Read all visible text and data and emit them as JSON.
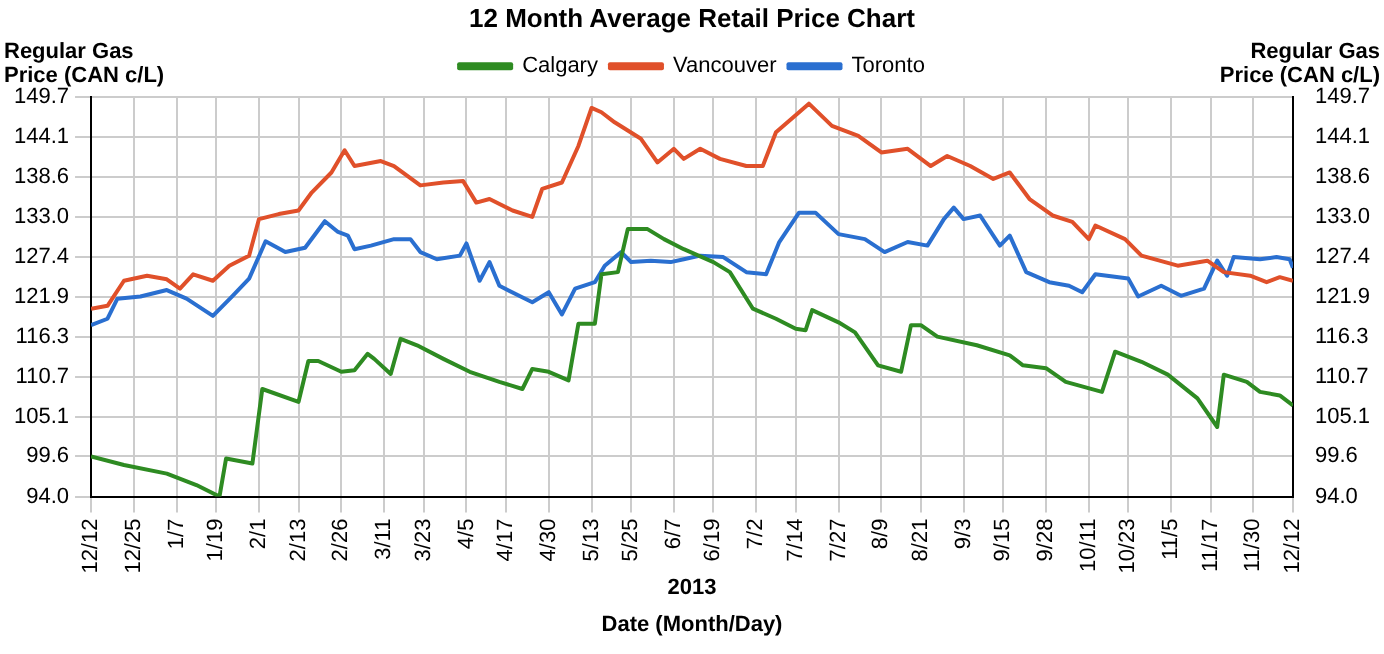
{
  "chart_data": {
    "type": "line",
    "title": "12 Month Average Retail Price Chart",
    "xlabel": "Date (Month/Day)",
    "ylabel": "Regular Gas Price (CAN c/L)",
    "y2label": "Regular Gas Price (CAN c/L)",
    "annotations": [
      "2013"
    ],
    "xlim": [
      "2012-12-12",
      "2013-12-12"
    ],
    "xticks": [
      {
        "value": "2012-12-12",
        "label": "12/12"
      },
      {
        "value": "2012-12-25",
        "label": "12/25"
      },
      {
        "value": "2013-01-07",
        "label": "1/7"
      },
      {
        "value": "2013-01-19",
        "label": "1/19"
      },
      {
        "value": "2013-02-01",
        "label": "2/1"
      },
      {
        "value": "2013-02-13",
        "label": "2/13"
      },
      {
        "value": "2013-02-26",
        "label": "2/26"
      },
      {
        "value": "2013-03-11",
        "label": "3/11"
      },
      {
        "value": "2013-03-23",
        "label": "3/23"
      },
      {
        "value": "2013-04-05",
        "label": "4/5"
      },
      {
        "value": "2013-04-17",
        "label": "4/17"
      },
      {
        "value": "2013-04-30",
        "label": "4/30"
      },
      {
        "value": "2013-05-13",
        "label": "5/13"
      },
      {
        "value": "2013-05-25",
        "label": "5/25"
      },
      {
        "value": "2013-06-07",
        "label": "6/7"
      },
      {
        "value": "2013-06-19",
        "label": "6/19"
      },
      {
        "value": "2013-07-02",
        "label": "7/2"
      },
      {
        "value": "2013-07-14",
        "label": "7/14"
      },
      {
        "value": "2013-07-27",
        "label": "7/27"
      },
      {
        "value": "2013-08-09",
        "label": "8/9"
      },
      {
        "value": "2013-08-21",
        "label": "8/21"
      },
      {
        "value": "2013-09-03",
        "label": "9/3"
      },
      {
        "value": "2013-09-15",
        "label": "9/15"
      },
      {
        "value": "2013-09-28",
        "label": "9/28"
      },
      {
        "value": "2013-10-11",
        "label": "10/11"
      },
      {
        "value": "2013-10-23",
        "label": "10/23"
      },
      {
        "value": "2013-11-05",
        "label": "11/5"
      },
      {
        "value": "2013-11-17",
        "label": "11/17"
      },
      {
        "value": "2013-11-30",
        "label": "11/30"
      },
      {
        "value": "2013-12-12",
        "label": "12/12"
      }
    ],
    "ylim": [
      94.0,
      149.7
    ],
    "yticks": [
      {
        "value": 94.0,
        "label": "94.0"
      },
      99.6,
      105.1,
      110.7,
      116.3,
      121.9,
      127.4,
      {
        "value": 133.0,
        "label": "133.0"
      },
      138.6,
      144.1,
      149.7
    ],
    "y2lim": [
      94.0,
      149.7
    ],
    "y2ticks": [
      {
        "value": 94.0,
        "label": "94.0"
      },
      99.6,
      105.1,
      110.7,
      116.3,
      121.9,
      127.4,
      {
        "value": 133.0,
        "label": "133.0"
      },
      138.6,
      144.1,
      149.7
    ],
    "grid": true,
    "legend": "top",
    "marker": "none",
    "line_style": "solid",
    "series": [
      {
        "name": "Calgary",
        "color": "#2e8b22",
        "x": [
          "2012-12-12",
          "2012-12-22",
          "2013-01-04",
          "2013-01-13",
          "2013-01-20",
          "2013-01-22",
          "2013-01-30",
          "2013-02-02",
          "2013-02-13",
          "2013-02-16",
          "2013-02-19",
          "2013-02-26",
          "2013-03-02",
          "2013-03-06",
          "2013-03-08",
          "2013-03-13",
          "2013-03-16",
          "2013-03-21",
          "2013-03-29",
          "2013-04-06",
          "2013-04-15",
          "2013-04-22",
          "2013-04-25",
          "2013-04-30",
          "2013-05-06",
          "2013-05-09",
          "2013-05-14",
          "2013-05-16",
          "2013-05-21",
          "2013-05-24",
          "2013-05-30",
          "2013-06-04",
          "2013-06-10",
          "2013-06-19",
          "2013-06-24",
          "2013-07-01",
          "2013-07-08",
          "2013-07-14",
          "2013-07-17",
          "2013-07-19",
          "2013-07-27",
          "2013-08-01",
          "2013-08-08",
          "2013-08-15",
          "2013-08-18",
          "2013-08-21",
          "2013-08-26",
          "2013-09-07",
          "2013-09-17",
          "2013-09-21",
          "2013-09-28",
          "2013-10-04",
          "2013-10-15",
          "2013-10-19",
          "2013-10-27",
          "2013-11-04",
          "2013-11-13",
          "2013-11-19",
          "2013-11-21",
          "2013-11-28",
          "2013-12-02",
          "2013-12-08",
          "2013-12-12"
        ],
        "values": [
          99.6,
          98.4,
          97.2,
          95.6,
          94.0,
          99.3,
          98.6,
          109.0,
          107.2,
          112.9,
          112.9,
          111.4,
          111.6,
          113.9,
          113.2,
          111.1,
          116.0,
          115.1,
          113.2,
          111.4,
          110.0,
          109.0,
          111.8,
          111.4,
          110.2,
          118.1,
          118.1,
          125.0,
          125.3,
          131.3,
          131.3,
          129.9,
          128.5,
          126.7,
          125.3,
          120.2,
          118.8,
          117.4,
          117.2,
          120.0,
          118.3,
          116.9,
          112.3,
          111.4,
          117.9,
          117.9,
          116.3,
          115.1,
          113.7,
          112.3,
          111.9,
          110.0,
          108.6,
          114.2,
          112.8,
          111.0,
          107.7,
          103.7,
          111.0,
          110.0,
          108.6,
          108.1,
          106.7
        ]
      },
      {
        "name": "Vancouver",
        "color": "#e0502a",
        "x": [
          "2012-12-12",
          "2012-12-17",
          "2012-12-22",
          "2012-12-29",
          "2013-01-04",
          "2013-01-08",
          "2013-01-12",
          "2013-01-18",
          "2013-01-23",
          "2013-01-29",
          "2013-02-01",
          "2013-02-07",
          "2013-02-13",
          "2013-02-17",
          "2013-02-23",
          "2013-02-27",
          "2013-03-02",
          "2013-03-10",
          "2013-03-14",
          "2013-03-22",
          "2013-03-29",
          "2013-04-04",
          "2013-04-08",
          "2013-04-12",
          "2013-04-19",
          "2013-04-25",
          "2013-04-28",
          "2013-05-04",
          "2013-05-09",
          "2013-05-13",
          "2013-05-16",
          "2013-05-20",
          "2013-05-28",
          "2013-06-02",
          "2013-06-07",
          "2013-06-10",
          "2013-06-15",
          "2013-06-21",
          "2013-06-29",
          "2013-07-04",
          "2013-07-08",
          "2013-07-18",
          "2013-07-25",
          "2013-08-02",
          "2013-08-09",
          "2013-08-17",
          "2013-08-24",
          "2013-08-29",
          "2013-09-05",
          "2013-09-12",
          "2013-09-17",
          "2013-09-23",
          "2013-09-30",
          "2013-10-06",
          "2013-10-11",
          "2013-10-13",
          "2013-10-22",
          "2013-10-27",
          "2013-11-07",
          "2013-11-16",
          "2013-11-21",
          "2013-11-29",
          "2013-12-04",
          "2013-12-08",
          "2013-12-12"
        ],
        "values": [
          120.2,
          120.6,
          124.1,
          124.8,
          124.3,
          123.0,
          125.0,
          124.1,
          126.2,
          127.6,
          132.7,
          133.4,
          133.9,
          136.4,
          139.2,
          142.3,
          140.1,
          140.8,
          140.1,
          137.4,
          137.8,
          138.0,
          135.0,
          135.5,
          133.9,
          133.0,
          136.9,
          137.8,
          142.9,
          148.2,
          147.6,
          146.2,
          143.9,
          140.6,
          142.5,
          141.1,
          142.5,
          141.1,
          140.1,
          140.1,
          144.8,
          148.8,
          145.7,
          144.3,
          142.0,
          142.5,
          140.1,
          141.5,
          140.1,
          138.3,
          139.2,
          135.5,
          133.2,
          132.3,
          129.9,
          131.8,
          129.9,
          127.6,
          126.2,
          126.9,
          125.3,
          124.8,
          123.9,
          124.6,
          124.1
        ]
      },
      {
        "name": "Toronto",
        "color": "#2a6fd0",
        "x": [
          "2012-12-12",
          "2012-12-17",
          "2012-12-20",
          "2012-12-27",
          "2013-01-04",
          "2013-01-10",
          "2013-01-18",
          "2013-01-24",
          "2013-01-29",
          "2013-02-03",
          "2013-02-09",
          "2013-02-15",
          "2013-02-21",
          "2013-02-25",
          "2013-02-28",
          "2013-03-02",
          "2013-03-07",
          "2013-03-14",
          "2013-03-19",
          "2013-03-22",
          "2013-03-27",
          "2013-04-03",
          "2013-04-05",
          "2013-04-09",
          "2013-04-12",
          "2013-04-15",
          "2013-04-21",
          "2013-04-25",
          "2013-04-30",
          "2013-05-04",
          "2013-05-08",
          "2013-05-14",
          "2013-05-17",
          "2013-05-22",
          "2013-05-25",
          "2013-05-31",
          "2013-06-06",
          "2013-06-10",
          "2013-06-15",
          "2013-06-22",
          "2013-06-29",
          "2013-07-05",
          "2013-07-09",
          "2013-07-15",
          "2013-07-20",
          "2013-07-27",
          "2013-08-04",
          "2013-08-10",
          "2013-08-17",
          "2013-08-23",
          "2013-08-28",
          "2013-08-31",
          "2013-09-03",
          "2013-09-08",
          "2013-09-14",
          "2013-09-17",
          "2013-09-22",
          "2013-09-29",
          "2013-10-05",
          "2013-10-09",
          "2013-10-13",
          "2013-10-23",
          "2013-10-26",
          "2013-11-02",
          "2013-11-08",
          "2013-11-15",
          "2013-11-19",
          "2013-11-22",
          "2013-11-24",
          "2013-12-02",
          "2013-12-07",
          "2013-12-11",
          "2013-12-12"
        ],
        "values": [
          117.9,
          118.8,
          121.6,
          121.9,
          122.8,
          121.6,
          119.2,
          122.0,
          124.4,
          129.6,
          128.1,
          128.7,
          132.4,
          130.9,
          130.4,
          128.5,
          129.0,
          129.9,
          129.9,
          128.1,
          127.1,
          127.6,
          129.3,
          124.1,
          126.7,
          123.4,
          122.0,
          121.1,
          122.5,
          119.4,
          123.0,
          123.9,
          126.2,
          128.1,
          126.7,
          126.9,
          126.7,
          127.1,
          127.6,
          127.4,
          125.3,
          125.0,
          129.5,
          133.6,
          133.6,
          130.6,
          129.9,
          128.1,
          129.5,
          129.0,
          132.7,
          134.3,
          132.7,
          133.2,
          129.0,
          130.4,
          125.3,
          123.9,
          123.4,
          122.5,
          125.0,
          124.4,
          121.9,
          123.4,
          122.0,
          123.0,
          126.9,
          124.8,
          127.4,
          127.1,
          127.4,
          127.1,
          125.9
        ]
      }
    ]
  }
}
